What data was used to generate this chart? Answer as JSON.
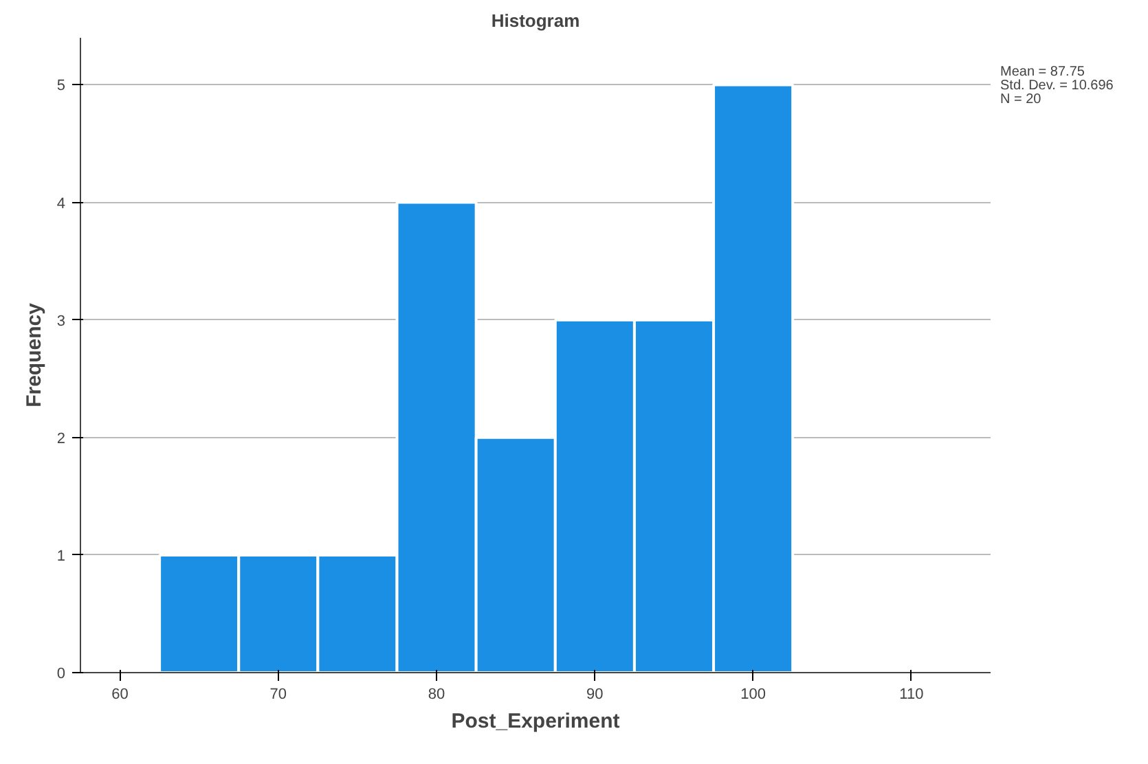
{
  "chart_data": {
    "type": "histogram",
    "title": "Histogram",
    "xlabel": "Post_Experiment",
    "ylabel": "Frequency",
    "bins": [
      62.5,
      67.5,
      72.5,
      77.5,
      82.5,
      87.5,
      92.5,
      97.5,
      102.5
    ],
    "values": [
      1,
      1,
      1,
      4,
      2,
      3,
      3,
      5
    ],
    "color": "#1a8fe3",
    "xlim": [
      57.5,
      115
    ],
    "xticks": [
      60,
      70,
      80,
      90,
      100,
      110
    ],
    "ylim": [
      0,
      5.4
    ],
    "yticks": [
      0,
      1,
      2,
      3,
      4,
      5
    ],
    "grid": "y",
    "annotations": [
      "Mean = 87.75",
      "Std. Dev. = 10.696",
      "N = 20"
    ]
  }
}
